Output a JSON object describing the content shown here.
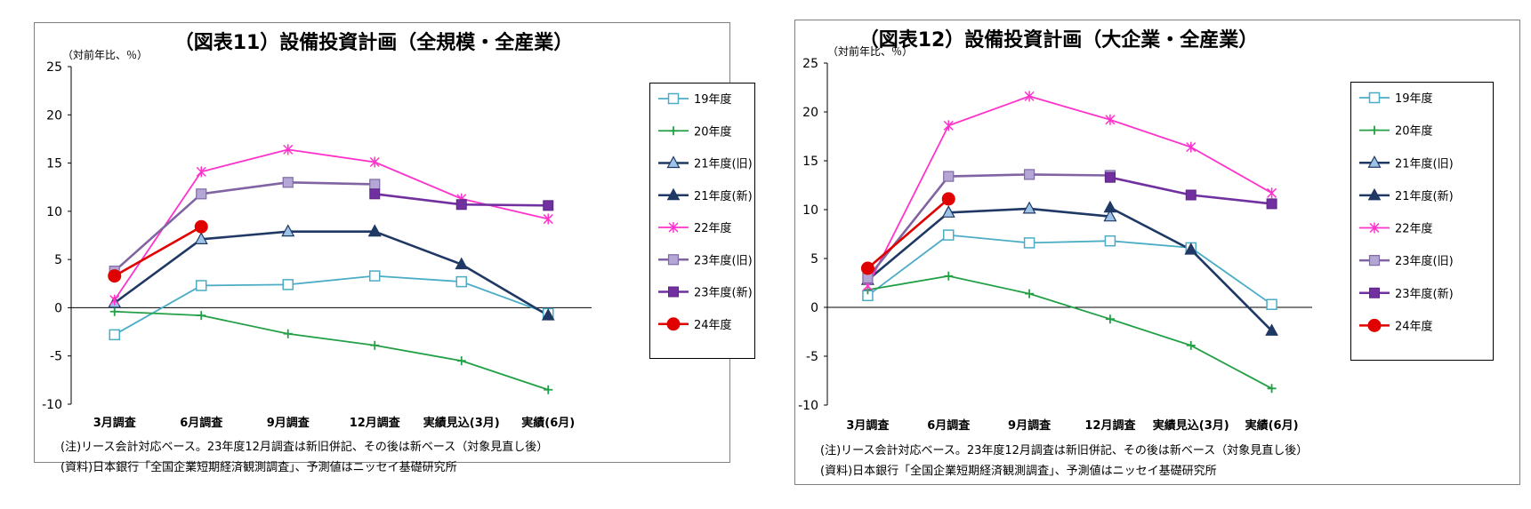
{
  "chart_data": [
    {
      "type": "line",
      "title": "（図表11）設備投資計画（全規模・全産業）",
      "unit_label": "（対前年比、％）",
      "categories": [
        "3月調査",
        "6月調査",
        "9月調査",
        "12月調査",
        "実績見込(3月)",
        "実績(6月)"
      ],
      "ylim": [
        -10,
        25
      ],
      "yticks": [
        "25",
        "20",
        "15",
        "10",
        "5",
        "0",
        "-5",
        "-10"
      ],
      "legend_position": "right",
      "series": [
        {
          "name": "19年度",
          "color": "#4bacc6",
          "marker": "square-open",
          "values": [
            -2.8,
            2.3,
            2.4,
            3.3,
            2.7,
            -0.6
          ]
        },
        {
          "name": "20年度",
          "color": "#22a045",
          "marker": "plus",
          "values": [
            -0.4,
            -0.8,
            -2.7,
            -3.9,
            -5.5,
            -8.5
          ]
        },
        {
          "name": "21年度(旧)",
          "color": "#1f3864",
          "marker": "triangle-light",
          "values": [
            0.5,
            7.1,
            7.9,
            7.9,
            null,
            null
          ]
        },
        {
          "name": "21年度(新)",
          "color": "#1f3864",
          "marker": "triangle-dark",
          "values": [
            null,
            null,
            null,
            7.9,
            4.5,
            -0.8
          ]
        },
        {
          "name": "22年度",
          "color": "#ff33cc",
          "marker": "star",
          "values": [
            0.8,
            14.1,
            16.4,
            15.1,
            11.3,
            9.2
          ]
        },
        {
          "name": "23年度(旧)",
          "color": "#8064a2",
          "marker": "square-light",
          "values": [
            3.8,
            11.8,
            13.0,
            12.8,
            null,
            null
          ]
        },
        {
          "name": "23年度(新)",
          "color": "#7030a0",
          "marker": "square-dark",
          "values": [
            null,
            null,
            null,
            11.8,
            10.7,
            10.6
          ]
        },
        {
          "name": "24年度",
          "color": "#e00000",
          "marker": "circle",
          "values": [
            3.3,
            8.4,
            null,
            null,
            null,
            null
          ]
        }
      ],
      "notes": [
        "(注)リース会計対応ベース。23年度12月調査は新旧併記、その後は新ベース（対象見直し後）",
        "(資料)日本銀行「全国企業短期経済観測調査」、予測値はニッセイ基礎研究所"
      ]
    },
    {
      "type": "line",
      "title": "（図表12）設備投資計画（大企業・全産業）",
      "unit_label": "（対前年比、％）",
      "categories": [
        "3月調査",
        "6月調査",
        "9月調査",
        "12月調査",
        "実績見込(3月)",
        "実績(6月)"
      ],
      "ylim": [
        -10,
        25
      ],
      "yticks": [
        "25",
        "20",
        "15",
        "10",
        "5",
        "0",
        "-5",
        "-10"
      ],
      "legend_position": "right",
      "series": [
        {
          "name": "19年度",
          "color": "#4bacc6",
          "marker": "square-open",
          "values": [
            1.2,
            7.4,
            6.6,
            6.8,
            6.1,
            0.3
          ]
        },
        {
          "name": "20年度",
          "color": "#22a045",
          "marker": "plus",
          "values": [
            1.8,
            3.2,
            1.4,
            -1.2,
            -3.9,
            -8.3
          ]
        },
        {
          "name": "21年度(旧)",
          "color": "#1f3864",
          "marker": "triangle-light",
          "values": [
            2.8,
            9.7,
            10.1,
            9.3,
            null,
            null
          ]
        },
        {
          "name": "21年度(新)",
          "color": "#1f3864",
          "marker": "triangle-dark",
          "values": [
            null,
            null,
            null,
            10.2,
            5.9,
            -2.4
          ]
        },
        {
          "name": "22年度",
          "color": "#ff33cc",
          "marker": "star",
          "values": [
            2.2,
            18.6,
            21.6,
            19.2,
            16.4,
            11.7
          ]
        },
        {
          "name": "23年度(旧)",
          "color": "#8064a2",
          "marker": "square-light",
          "values": [
            3.0,
            13.4,
            13.6,
            13.5,
            null,
            null
          ]
        },
        {
          "name": "23年度(新)",
          "color": "#7030a0",
          "marker": "square-dark",
          "values": [
            null,
            null,
            null,
            13.3,
            11.5,
            10.6
          ]
        },
        {
          "name": "24年度",
          "color": "#e00000",
          "marker": "circle",
          "values": [
            4.0,
            11.1,
            null,
            null,
            null,
            null
          ]
        }
      ],
      "notes": [
        "(注)リース会計対応ベース。23年度12月調査は新旧併記、その後は新ベース（対象見直し後）",
        "(資料)日本銀行「全国企業短期経済観測調査」、予測値はニッセイ基礎研究所"
      ]
    }
  ]
}
